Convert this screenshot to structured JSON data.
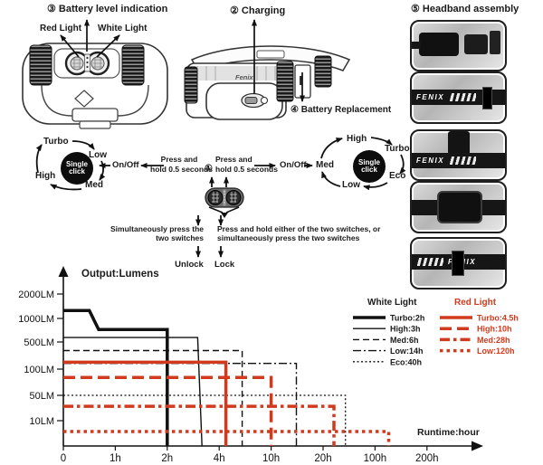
{
  "annotations": {
    "battery_level": "③ Battery level indication",
    "red_light": "Red Light",
    "white_light": "White Light",
    "charging": "② Charging",
    "battery_replacement": "④ Battery Replacement",
    "headband_assembly": "⑤ Headband assembly",
    "switch_ref": "①",
    "brand": "Fenix"
  },
  "red_cycle": {
    "center": "Single click",
    "modes": [
      "Turbo",
      "Low",
      "Med",
      "High"
    ]
  },
  "white_cycle": {
    "center": "Single click",
    "modes": [
      "High",
      "Turbo",
      "Eco",
      "Low",
      "Med"
    ]
  },
  "flow": {
    "on_off": "On/Off",
    "press_hold_lines": [
      "Press and",
      "hold 0.5 seconds"
    ],
    "unlock_lines": [
      "Simultaneously press the",
      "two switches"
    ],
    "lock_lines": [
      "Press and hold either of the two switches, or",
      "simultaneously press the two switches"
    ],
    "unlock_label": "Unlock",
    "lock_label": "Lock"
  },
  "chart_data": {
    "type": "line",
    "title": "Output:Lumens",
    "xlabel": "Runtime:hour",
    "x_ticks": [
      "0",
      "1h",
      "2h",
      "4h",
      "10h",
      "20h",
      "100h",
      "200h"
    ],
    "x_tick_hours": [
      0,
      1,
      2,
      4,
      10,
      20,
      100,
      200
    ],
    "y_ticks": [
      "2000LM",
      "1000LM",
      "500LM",
      "100LM",
      "50LM",
      "10LM"
    ],
    "y_tick_lumens": [
      2000,
      1000,
      500,
      100,
      50,
      10
    ],
    "grid": false,
    "legend": {
      "white": {
        "title": "White Light",
        "color": "#1a1a1a",
        "items": [
          {
            "label": "Turbo:2h"
          },
          {
            "label": "High:3h"
          },
          {
            "label": "Med:6h"
          },
          {
            "label": "Low:14h"
          },
          {
            "label": "Eco:40h"
          }
        ]
      },
      "red": {
        "title": "Red Light",
        "color": "#d13a1c",
        "items": [
          {
            "label": "Turbo:4.5h"
          },
          {
            "label": "High:10h"
          },
          {
            "label": "Med:28h"
          },
          {
            "label": "Low:120h"
          }
        ]
      }
    },
    "series": [
      {
        "name": "white-turbo",
        "runtime_h": 2,
        "color": "#111111",
        "width": 3.5,
        "dash": "",
        "points": [
          [
            0,
            1250
          ],
          [
            0.5,
            1250
          ],
          [
            0.68,
            720
          ],
          [
            2,
            720
          ],
          [
            2,
            0
          ]
        ]
      },
      {
        "name": "white-high",
        "runtime_h": 3,
        "color": "#111111",
        "width": 1.4,
        "dash": "",
        "points": [
          [
            0,
            570
          ],
          [
            3,
            570
          ],
          [
            3.18,
            0
          ]
        ]
      },
      {
        "name": "white-med",
        "runtime_h": 6,
        "color": "#111111",
        "width": 1.4,
        "dash": "7 4",
        "points": [
          [
            0,
            300
          ],
          [
            6,
            300
          ],
          [
            6,
            0
          ]
        ]
      },
      {
        "name": "white-low",
        "runtime_h": 14,
        "color": "#111111",
        "width": 1.4,
        "dash": "9 3 2 3",
        "points": [
          [
            0,
            140
          ],
          [
            14,
            140
          ],
          [
            14,
            0
          ]
        ]
      },
      {
        "name": "white-eco",
        "runtime_h": 40,
        "color": "#111111",
        "width": 1.3,
        "dash": "2 2.5",
        "points": [
          [
            0,
            50
          ],
          [
            40,
            50
          ],
          [
            40,
            0
          ]
        ]
      },
      {
        "name": "red-turbo",
        "runtime_h": 4.5,
        "color": "#d13a1c",
        "width": 3.5,
        "dash": "",
        "points": [
          [
            0,
            150
          ],
          [
            4.5,
            150
          ],
          [
            4.5,
            0
          ]
        ]
      },
      {
        "name": "red-high",
        "runtime_h": 10,
        "color": "#d13a1c",
        "width": 3.5,
        "dash": "13 6",
        "points": [
          [
            0,
            80
          ],
          [
            10,
            80
          ],
          [
            10,
            0
          ]
        ]
      },
      {
        "name": "red-med",
        "runtime_h": 28,
        "color": "#d13a1c",
        "width": 3.5,
        "dash": "11 4 3.5 4",
        "points": [
          [
            0,
            25
          ],
          [
            28,
            25
          ],
          [
            28,
            0
          ]
        ]
      },
      {
        "name": "red-low",
        "runtime_h": 120,
        "color": "#d13a1c",
        "width": 3.5,
        "dash": "3.5 4",
        "points": [
          [
            0,
            5
          ],
          [
            120,
            5
          ],
          [
            120,
            0
          ]
        ]
      }
    ]
  }
}
